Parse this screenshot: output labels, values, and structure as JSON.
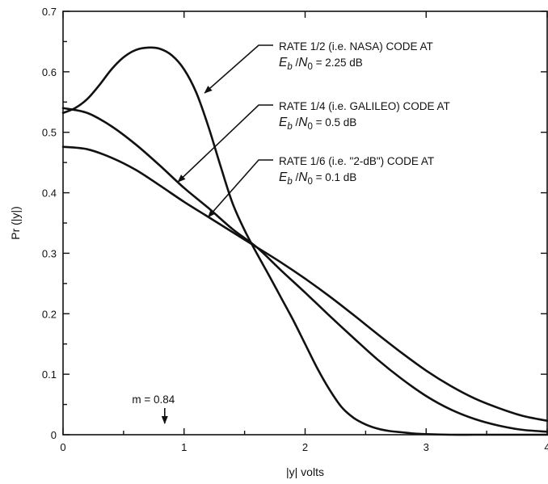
{
  "chart_data": {
    "type": "line",
    "xlabel": "|y| volts",
    "ylabel": "Pr (|y|)",
    "xlim": [
      0,
      4
    ],
    "ylim": [
      0,
      0.7
    ],
    "x_ticks": [
      "0",
      "1",
      "2",
      "3",
      "4"
    ],
    "y_ticks": [
      "0",
      "0.1",
      "0.2",
      "0.3",
      "0.4",
      "0.5",
      "0.6",
      "0.7"
    ],
    "grid": false,
    "series": [
      {
        "name": "RATE 1/2 (i.e. NASA) CODE AT E_b/N_0 = 2.25 dB",
        "x": [
          0,
          0.1,
          0.2,
          0.3,
          0.4,
          0.5,
          0.6,
          0.7,
          0.8,
          0.9,
          1.0,
          1.1,
          1.2,
          1.3,
          1.4,
          1.5,
          1.6,
          1.7,
          1.8,
          1.9,
          2.0,
          2.1,
          2.2,
          2.3,
          2.4,
          2.5,
          2.6,
          2.7,
          2.8,
          2.9,
          3.0,
          3.2,
          3.4,
          3.6,
          3.8,
          4.0
        ],
        "y": [
          0.532,
          0.54,
          0.555,
          0.578,
          0.604,
          0.624,
          0.636,
          0.64,
          0.638,
          0.627,
          0.604,
          0.566,
          0.51,
          0.445,
          0.383,
          0.338,
          0.3,
          0.264,
          0.227,
          0.19,
          0.15,
          0.11,
          0.075,
          0.046,
          0.028,
          0.017,
          0.01,
          0.006,
          0.004,
          0.002,
          0.001,
          0.0,
          0.0,
          0.0,
          0.0,
          0.0
        ]
      },
      {
        "name": "RATE 1/4 (i.e. GALILEO) CODE AT E_b/N_0 = 0.5 dB",
        "x": [
          0,
          0.2,
          0.4,
          0.6,
          0.8,
          1.0,
          1.2,
          1.4,
          1.6,
          1.8,
          2.0,
          2.2,
          2.4,
          2.6,
          2.8,
          3.0,
          3.2,
          3.4,
          3.6,
          3.8,
          4.0
        ],
        "y": [
          0.54,
          0.532,
          0.51,
          0.48,
          0.445,
          0.408,
          0.375,
          0.34,
          0.31,
          0.272,
          0.235,
          0.197,
          0.16,
          0.124,
          0.092,
          0.064,
          0.042,
          0.026,
          0.015,
          0.008,
          0.005
        ]
      },
      {
        "name": "RATE 1/6 (i.e. \"2-dB\") CODE AT E_b/N_0 = 0.1 dB",
        "x": [
          0,
          0.2,
          0.4,
          0.6,
          0.8,
          1.0,
          1.2,
          1.4,
          1.6,
          1.8,
          2.0,
          2.2,
          2.4,
          2.6,
          2.8,
          3.0,
          3.2,
          3.4,
          3.6,
          3.8,
          4.0
        ],
        "y": [
          0.476,
          0.472,
          0.458,
          0.438,
          0.412,
          0.385,
          0.36,
          0.335,
          0.31,
          0.285,
          0.258,
          0.229,
          0.198,
          0.166,
          0.135,
          0.106,
          0.081,
          0.06,
          0.044,
          0.031,
          0.023
        ]
      }
    ],
    "annotations": [
      {
        "line1": "RATE 1/2 (i.e. NASA) CODE AT",
        "e": "E",
        "e_sub": "b",
        "slash": " /",
        "n": "N",
        "n_sub": "0",
        "value": " = 2.25 dB",
        "arrow_target": {
          "x": 1.17,
          "y": 0.565
        }
      },
      {
        "line1": "RATE 1/4 (i.e. GALILEO) CODE AT",
        "e": "E",
        "e_sub": "b",
        "slash": " /",
        "n": "N",
        "n_sub": "0",
        "value": " = 0.5 dB",
        "arrow_target": {
          "x": 0.95,
          "y": 0.418
        }
      },
      {
        "line1": "RATE 1/6 (i.e. \"2-dB\") CODE AT",
        "e": "E",
        "e_sub": "b",
        "slash": " /",
        "n": "N",
        "n_sub": "0",
        "value": " = 0.1 dB",
        "arrow_target": {
          "x": 1.2,
          "y": 0.36
        }
      }
    ],
    "marker": {
      "label": "m = 0.84",
      "x": 0.84
    }
  }
}
